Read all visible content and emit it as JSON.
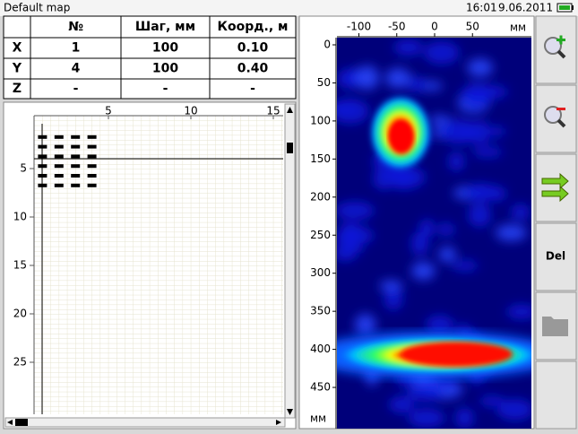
{
  "header": {
    "title": "Default map",
    "time": "16:01",
    "date": "9.06.2011"
  },
  "table": {
    "columns": [
      "№",
      "Шаг, мм",
      "Коорд., м"
    ],
    "rows": [
      {
        "label": "X",
        "cells": [
          "1",
          "100",
          "0.10"
        ]
      },
      {
        "label": "Y",
        "cells": [
          "4",
          "100",
          "0.40"
        ]
      },
      {
        "label": "Z",
        "cells": [
          "-",
          "-",
          "-"
        ]
      }
    ]
  },
  "map_grid": {
    "xticks": [
      5,
      10,
      15
    ],
    "yticks": [
      5,
      10,
      15,
      20,
      25
    ]
  },
  "scan": {
    "xticks": [
      -100,
      -50,
      0,
      50
    ],
    "x_unit": "мм",
    "yticks": [
      0,
      50,
      100,
      150,
      200,
      250,
      300,
      350,
      400,
      450
    ],
    "y_unit": "мм"
  },
  "toolbar": {
    "delete_label": "Del"
  }
}
